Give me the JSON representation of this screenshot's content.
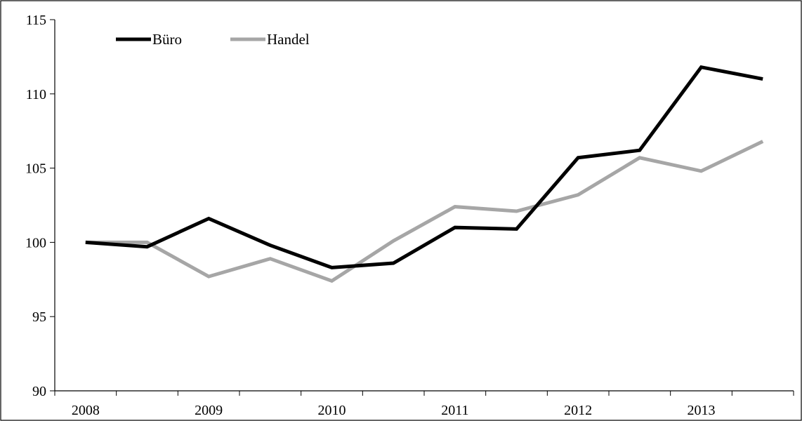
{
  "chart_data": {
    "type": "line",
    "x": [
      "2008-Q1",
      "2008-Q3",
      "2009-Q1",
      "2009-Q3",
      "2010-Q1",
      "2010-Q3",
      "2011-Q1",
      "2011-Q3",
      "2012-Q1",
      "2012-Q3",
      "2013-Q1",
      "2013-Q3"
    ],
    "year_labels": [
      "2008",
      "2009",
      "2010",
      "2011",
      "2012",
      "2013"
    ],
    "series": [
      {
        "name": "Büro",
        "color": "#000000",
        "values": [
          100,
          99.7,
          101.6,
          99.8,
          98.3,
          98.6,
          101.0,
          100.9,
          105.7,
          106.2,
          111.8,
          111.0
        ]
      },
      {
        "name": "Handel",
        "color": "#a6a6a6",
        "values": [
          100,
          100,
          97.7,
          98.9,
          97.4,
          100.1,
          102.4,
          102.1,
          103.2,
          105.7,
          104.8,
          106.8
        ]
      }
    ],
    "ylim": [
      90,
      115
    ],
    "yticks": [
      "90",
      "95",
      "100",
      "105",
      "110",
      "115"
    ],
    "legend": "top-left",
    "grid": false
  }
}
